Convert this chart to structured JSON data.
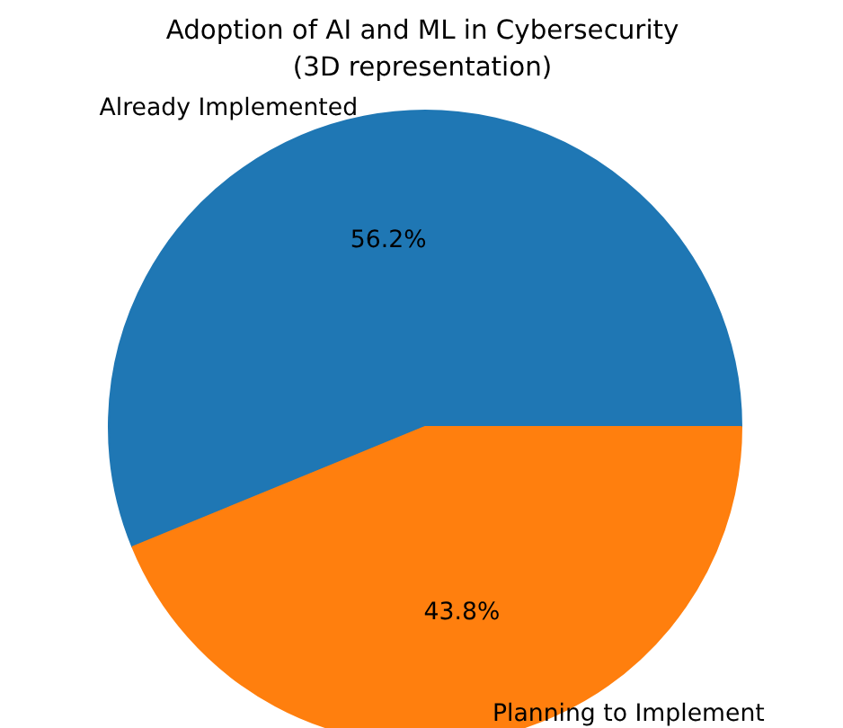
{
  "chart_data": {
    "type": "pie",
    "title": "Adoption of AI and ML in Cybersecurity\n(3D representation)",
    "categories": [
      "Already Implemented",
      "Planning to Implement"
    ],
    "values": [
      56.2,
      43.8
    ],
    "colors": [
      "#1f77b4",
      "#ff7f0e"
    ],
    "value_labels": [
      "56.2%",
      "43.8%"
    ]
  }
}
